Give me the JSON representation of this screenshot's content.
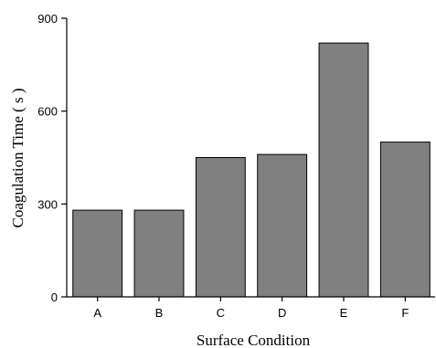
{
  "chart_data": {
    "type": "bar",
    "title": "",
    "xlabel": "Surface Condition",
    "ylabel": "Coagulation Time ( s )",
    "categories": [
      "A",
      "B",
      "C",
      "D",
      "E",
      "F"
    ],
    "values": [
      280,
      280,
      450,
      460,
      820,
      500
    ],
    "ylim": [
      0,
      900
    ],
    "yticks": [
      0,
      300,
      600,
      900
    ],
    "ytick_labels": [
      "0",
      "300",
      "600",
      "900"
    ],
    "bar_color": "#808080",
    "grid": false,
    "legend": "none"
  }
}
